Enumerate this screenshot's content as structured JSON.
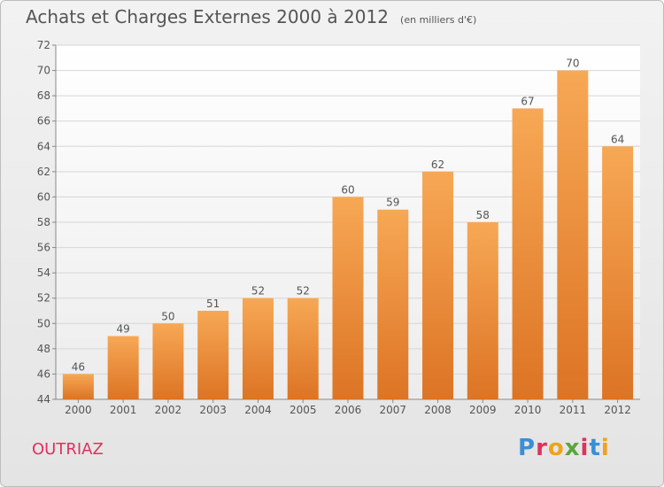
{
  "title": "Achats et Charges Externes 2000 à 2012",
  "subtitle": "(en milliers d'€)",
  "place_label": "OUTRIAZ",
  "logo": {
    "text": "Proxiti",
    "letter_colors": [
      "#3a8fd6",
      "#e0315e",
      "#f0a21c",
      "#5aa63c",
      "#e0315e",
      "#3a8fd6",
      "#f0a21c"
    ]
  },
  "colors": {
    "bar_top": "#f7a855",
    "bar_bottom": "#dc7424",
    "text": "#555555"
  },
  "chart_data": {
    "type": "bar",
    "categories": [
      "2000",
      "2001",
      "2002",
      "2003",
      "2004",
      "2005",
      "2006",
      "2007",
      "2008",
      "2009",
      "2010",
      "2011",
      "2012"
    ],
    "values": [
      46,
      49,
      50,
      51,
      52,
      52,
      60,
      59,
      62,
      58,
      67,
      70,
      64
    ],
    "ylim": [
      44,
      72
    ],
    "yticks": [
      44,
      46,
      48,
      50,
      52,
      54,
      56,
      58,
      60,
      62,
      64,
      66,
      68,
      70,
      72
    ],
    "grid": true
  }
}
